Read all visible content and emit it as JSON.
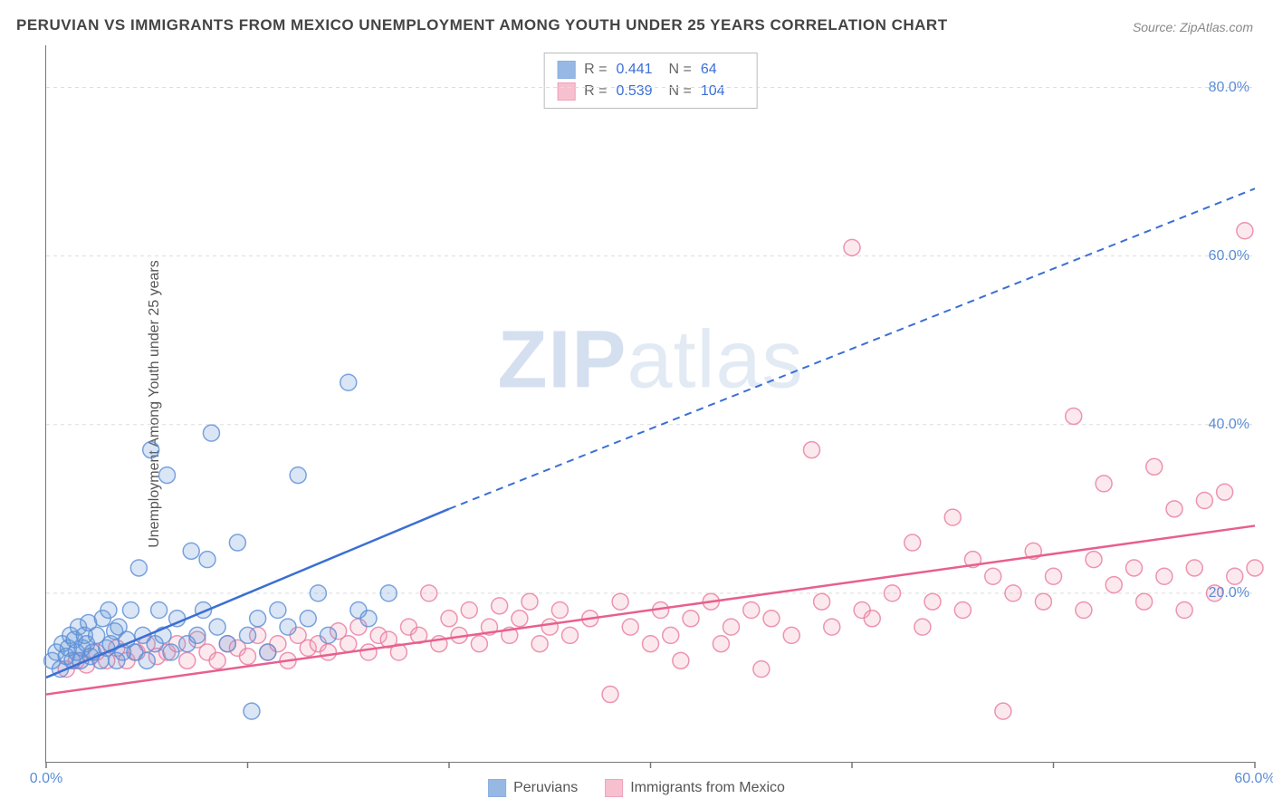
{
  "title": "PERUVIAN VS IMMIGRANTS FROM MEXICO UNEMPLOYMENT AMONG YOUTH UNDER 25 YEARS CORRELATION CHART",
  "source": "Source: ZipAtlas.com",
  "ylabel": "Unemployment Among Youth under 25 years",
  "watermark_zip": "ZIP",
  "watermark_atlas": "atlas",
  "chart": {
    "type": "scatter",
    "background_color": "#ffffff",
    "grid_color": "#dddddd",
    "grid_dash": "4,4",
    "axis_color": "#777777",
    "tick_label_color": "#5b8dd6",
    "tick_fontsize": 16,
    "xlim": [
      0,
      60
    ],
    "ylim": [
      0,
      85
    ],
    "x_ticks": [
      0,
      10,
      20,
      30,
      40,
      50,
      60
    ],
    "x_tick_labels": [
      "0.0%",
      "",
      "",
      "",
      "",
      "",
      "60.0%"
    ],
    "y_ticks": [
      20,
      40,
      60,
      80
    ],
    "y_tick_labels": [
      "20.0%",
      "40.0%",
      "60.0%",
      "80.0%"
    ],
    "marker_radius": 9,
    "marker_fill_opacity": 0.25,
    "marker_stroke_width": 1.5,
    "line_width_solid": 2.5,
    "line_width_dash": 2,
    "line_dash_pattern": "8,6",
    "series": [
      {
        "id": "peruvians",
        "label": "Peruvians",
        "color": "#6a9bd8",
        "stroke": "#5b8dd6",
        "line_color": "#3b6fd4",
        "r_value": "0.441",
        "n_value": "64",
        "trend_solid": {
          "x1": 0,
          "y1": 10,
          "x2": 20,
          "y2": 30
        },
        "trend_dash": {
          "x1": 20,
          "y1": 30,
          "x2": 60,
          "y2": 68
        },
        "points": [
          [
            0.3,
            12
          ],
          [
            0.5,
            13
          ],
          [
            0.7,
            11
          ],
          [
            0.8,
            14
          ],
          [
            1.0,
            12.5
          ],
          [
            1.1,
            13.5
          ],
          [
            1.2,
            15
          ],
          [
            1.3,
            12
          ],
          [
            1.4,
            14.5
          ],
          [
            1.5,
            13
          ],
          [
            1.6,
            16
          ],
          [
            1.7,
            12
          ],
          [
            1.8,
            13.5
          ],
          [
            1.9,
            15
          ],
          [
            2.0,
            14
          ],
          [
            2.1,
            16.5
          ],
          [
            2.2,
            12.5
          ],
          [
            2.3,
            13
          ],
          [
            2.5,
            15
          ],
          [
            2.7,
            12
          ],
          [
            2.8,
            17
          ],
          [
            3.0,
            13.5
          ],
          [
            3.1,
            18
          ],
          [
            3.2,
            14
          ],
          [
            3.4,
            15.5
          ],
          [
            3.5,
            12
          ],
          [
            3.6,
            16
          ],
          [
            3.8,
            13
          ],
          [
            4.0,
            14.5
          ],
          [
            4.2,
            18
          ],
          [
            4.4,
            13
          ],
          [
            4.6,
            23
          ],
          [
            4.8,
            15
          ],
          [
            5.0,
            12
          ],
          [
            5.2,
            37
          ],
          [
            5.4,
            14
          ],
          [
            5.6,
            18
          ],
          [
            5.8,
            15
          ],
          [
            6.0,
            34
          ],
          [
            6.2,
            13
          ],
          [
            6.5,
            17
          ],
          [
            7.0,
            14
          ],
          [
            7.2,
            25
          ],
          [
            7.5,
            15
          ],
          [
            7.8,
            18
          ],
          [
            8.0,
            24
          ],
          [
            8.2,
            39
          ],
          [
            8.5,
            16
          ],
          [
            9.0,
            14
          ],
          [
            9.5,
            26
          ],
          [
            10.0,
            15
          ],
          [
            10.2,
            6
          ],
          [
            10.5,
            17
          ],
          [
            11.0,
            13
          ],
          [
            11.5,
            18
          ],
          [
            12.0,
            16
          ],
          [
            12.5,
            34
          ],
          [
            13.0,
            17
          ],
          [
            13.5,
            20
          ],
          [
            14.0,
            15
          ],
          [
            15.0,
            45
          ],
          [
            15.5,
            18
          ],
          [
            16.0,
            17
          ],
          [
            17.0,
            20
          ]
        ]
      },
      {
        "id": "mexico",
        "label": "Immigrants from Mexico",
        "color": "#f4a6bc",
        "stroke": "#e87ba0",
        "line_color": "#e85f8e",
        "r_value": "0.539",
        "n_value": "104",
        "trend_solid": {
          "x1": 0,
          "y1": 8,
          "x2": 60,
          "y2": 28
        },
        "trend_dash": null,
        "points": [
          [
            1,
            11
          ],
          [
            1.5,
            12
          ],
          [
            2,
            11.5
          ],
          [
            2.5,
            13
          ],
          [
            3,
            12
          ],
          [
            3.5,
            13.5
          ],
          [
            4,
            12
          ],
          [
            4.5,
            13
          ],
          [
            5,
            14
          ],
          [
            5.5,
            12.5
          ],
          [
            6,
            13
          ],
          [
            6.5,
            14
          ],
          [
            7,
            12
          ],
          [
            7.5,
            14.5
          ],
          [
            8,
            13
          ],
          [
            8.5,
            12
          ],
          [
            9,
            14
          ],
          [
            9.5,
            13.5
          ],
          [
            10,
            12.5
          ],
          [
            10.5,
            15
          ],
          [
            11,
            13
          ],
          [
            11.5,
            14
          ],
          [
            12,
            12
          ],
          [
            12.5,
            15
          ],
          [
            13,
            13.5
          ],
          [
            13.5,
            14
          ],
          [
            14,
            13
          ],
          [
            14.5,
            15.5
          ],
          [
            15,
            14
          ],
          [
            15.5,
            16
          ],
          [
            16,
            13
          ],
          [
            16.5,
            15
          ],
          [
            17,
            14.5
          ],
          [
            17.5,
            13
          ],
          [
            18,
            16
          ],
          [
            18.5,
            15
          ],
          [
            19,
            20
          ],
          [
            19.5,
            14
          ],
          [
            20,
            17
          ],
          [
            20.5,
            15
          ],
          [
            21,
            18
          ],
          [
            21.5,
            14
          ],
          [
            22,
            16
          ],
          [
            22.5,
            18.5
          ],
          [
            23,
            15
          ],
          [
            23.5,
            17
          ],
          [
            24,
            19
          ],
          [
            24.5,
            14
          ],
          [
            25,
            16
          ],
          [
            25.5,
            18
          ],
          [
            26,
            15
          ],
          [
            27,
            17
          ],
          [
            28,
            8
          ],
          [
            28.5,
            19
          ],
          [
            29,
            16
          ],
          [
            30,
            14
          ],
          [
            30.5,
            18
          ],
          [
            31,
            15
          ],
          [
            31.5,
            12
          ],
          [
            32,
            17
          ],
          [
            33,
            19
          ],
          [
            33.5,
            14
          ],
          [
            34,
            16
          ],
          [
            35,
            18
          ],
          [
            35.5,
            11
          ],
          [
            36,
            17
          ],
          [
            37,
            15
          ],
          [
            38,
            37
          ],
          [
            38.5,
            19
          ],
          [
            39,
            16
          ],
          [
            40,
            61
          ],
          [
            40.5,
            18
          ],
          [
            41,
            17
          ],
          [
            42,
            20
          ],
          [
            43,
            26
          ],
          [
            43.5,
            16
          ],
          [
            44,
            19
          ],
          [
            45,
            29
          ],
          [
            45.5,
            18
          ],
          [
            46,
            24
          ],
          [
            47,
            22
          ],
          [
            47.5,
            6
          ],
          [
            48,
            20
          ],
          [
            49,
            25
          ],
          [
            49.5,
            19
          ],
          [
            50,
            22
          ],
          [
            51,
            41
          ],
          [
            51.5,
            18
          ],
          [
            52,
            24
          ],
          [
            52.5,
            33
          ],
          [
            53,
            21
          ],
          [
            54,
            23
          ],
          [
            54.5,
            19
          ],
          [
            55,
            35
          ],
          [
            55.5,
            22
          ],
          [
            56,
            30
          ],
          [
            56.5,
            18
          ],
          [
            57,
            23
          ],
          [
            57.5,
            31
          ],
          [
            58,
            20
          ],
          [
            58.5,
            32
          ],
          [
            59,
            22
          ],
          [
            59.5,
            63
          ],
          [
            60,
            23
          ]
        ]
      }
    ]
  },
  "legend": {
    "stats_labels": {
      "r": "R =",
      "n": "N ="
    }
  }
}
